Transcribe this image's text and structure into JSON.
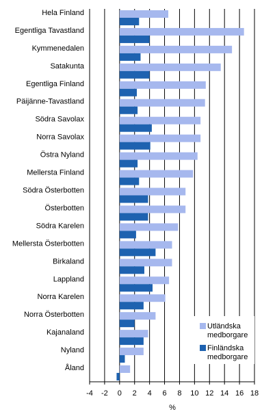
{
  "chart_data": {
    "type": "bar",
    "orientation": "horizontal",
    "categories": [
      "Hela Finland",
      "Egentliga Tavastland",
      "Kymmenedalen",
      "Satakunta",
      "Egentliga Finland",
      "Päijänne-Tavastland",
      "Södra Savolax",
      "Norra Savolax",
      "Östra Nyland",
      "Mellersta Finland",
      "Södra Österbotten",
      "Österbotten",
      "Södra Karelen",
      "Mellersta Österbotten",
      "Birkaland",
      "Lappland",
      "Norra Karelen",
      "Norra Österbotten",
      "Kajanaland",
      "Nyland",
      "Åland"
    ],
    "series": [
      {
        "name": "Utländska medborgare",
        "color": "#a6b8ee",
        "values": [
          6.5,
          16.6,
          15.0,
          13.5,
          11.5,
          11.4,
          10.8,
          10.8,
          10.4,
          9.8,
          8.8,
          8.8,
          7.8,
          7.0,
          7.0,
          6.6,
          6.1,
          4.8,
          3.8,
          3.2,
          1.4
        ]
      },
      {
        "name": "Finländska medborgare",
        "color": "#1e62b0",
        "values": [
          2.6,
          4.0,
          2.8,
          4.0,
          2.3,
          2.4,
          4.3,
          4.1,
          2.4,
          2.6,
          3.8,
          3.8,
          2.2,
          4.8,
          3.3,
          4.4,
          3.2,
          2.0,
          3.2,
          0.7,
          -0.4
        ]
      }
    ],
    "xlabel": "%",
    "xlim": [
      -4,
      18
    ],
    "xticks": [
      -4,
      -2,
      0,
      2,
      4,
      6,
      8,
      10,
      12,
      14,
      16,
      18
    ],
    "grid": true,
    "legend_position": "bottom-right"
  }
}
